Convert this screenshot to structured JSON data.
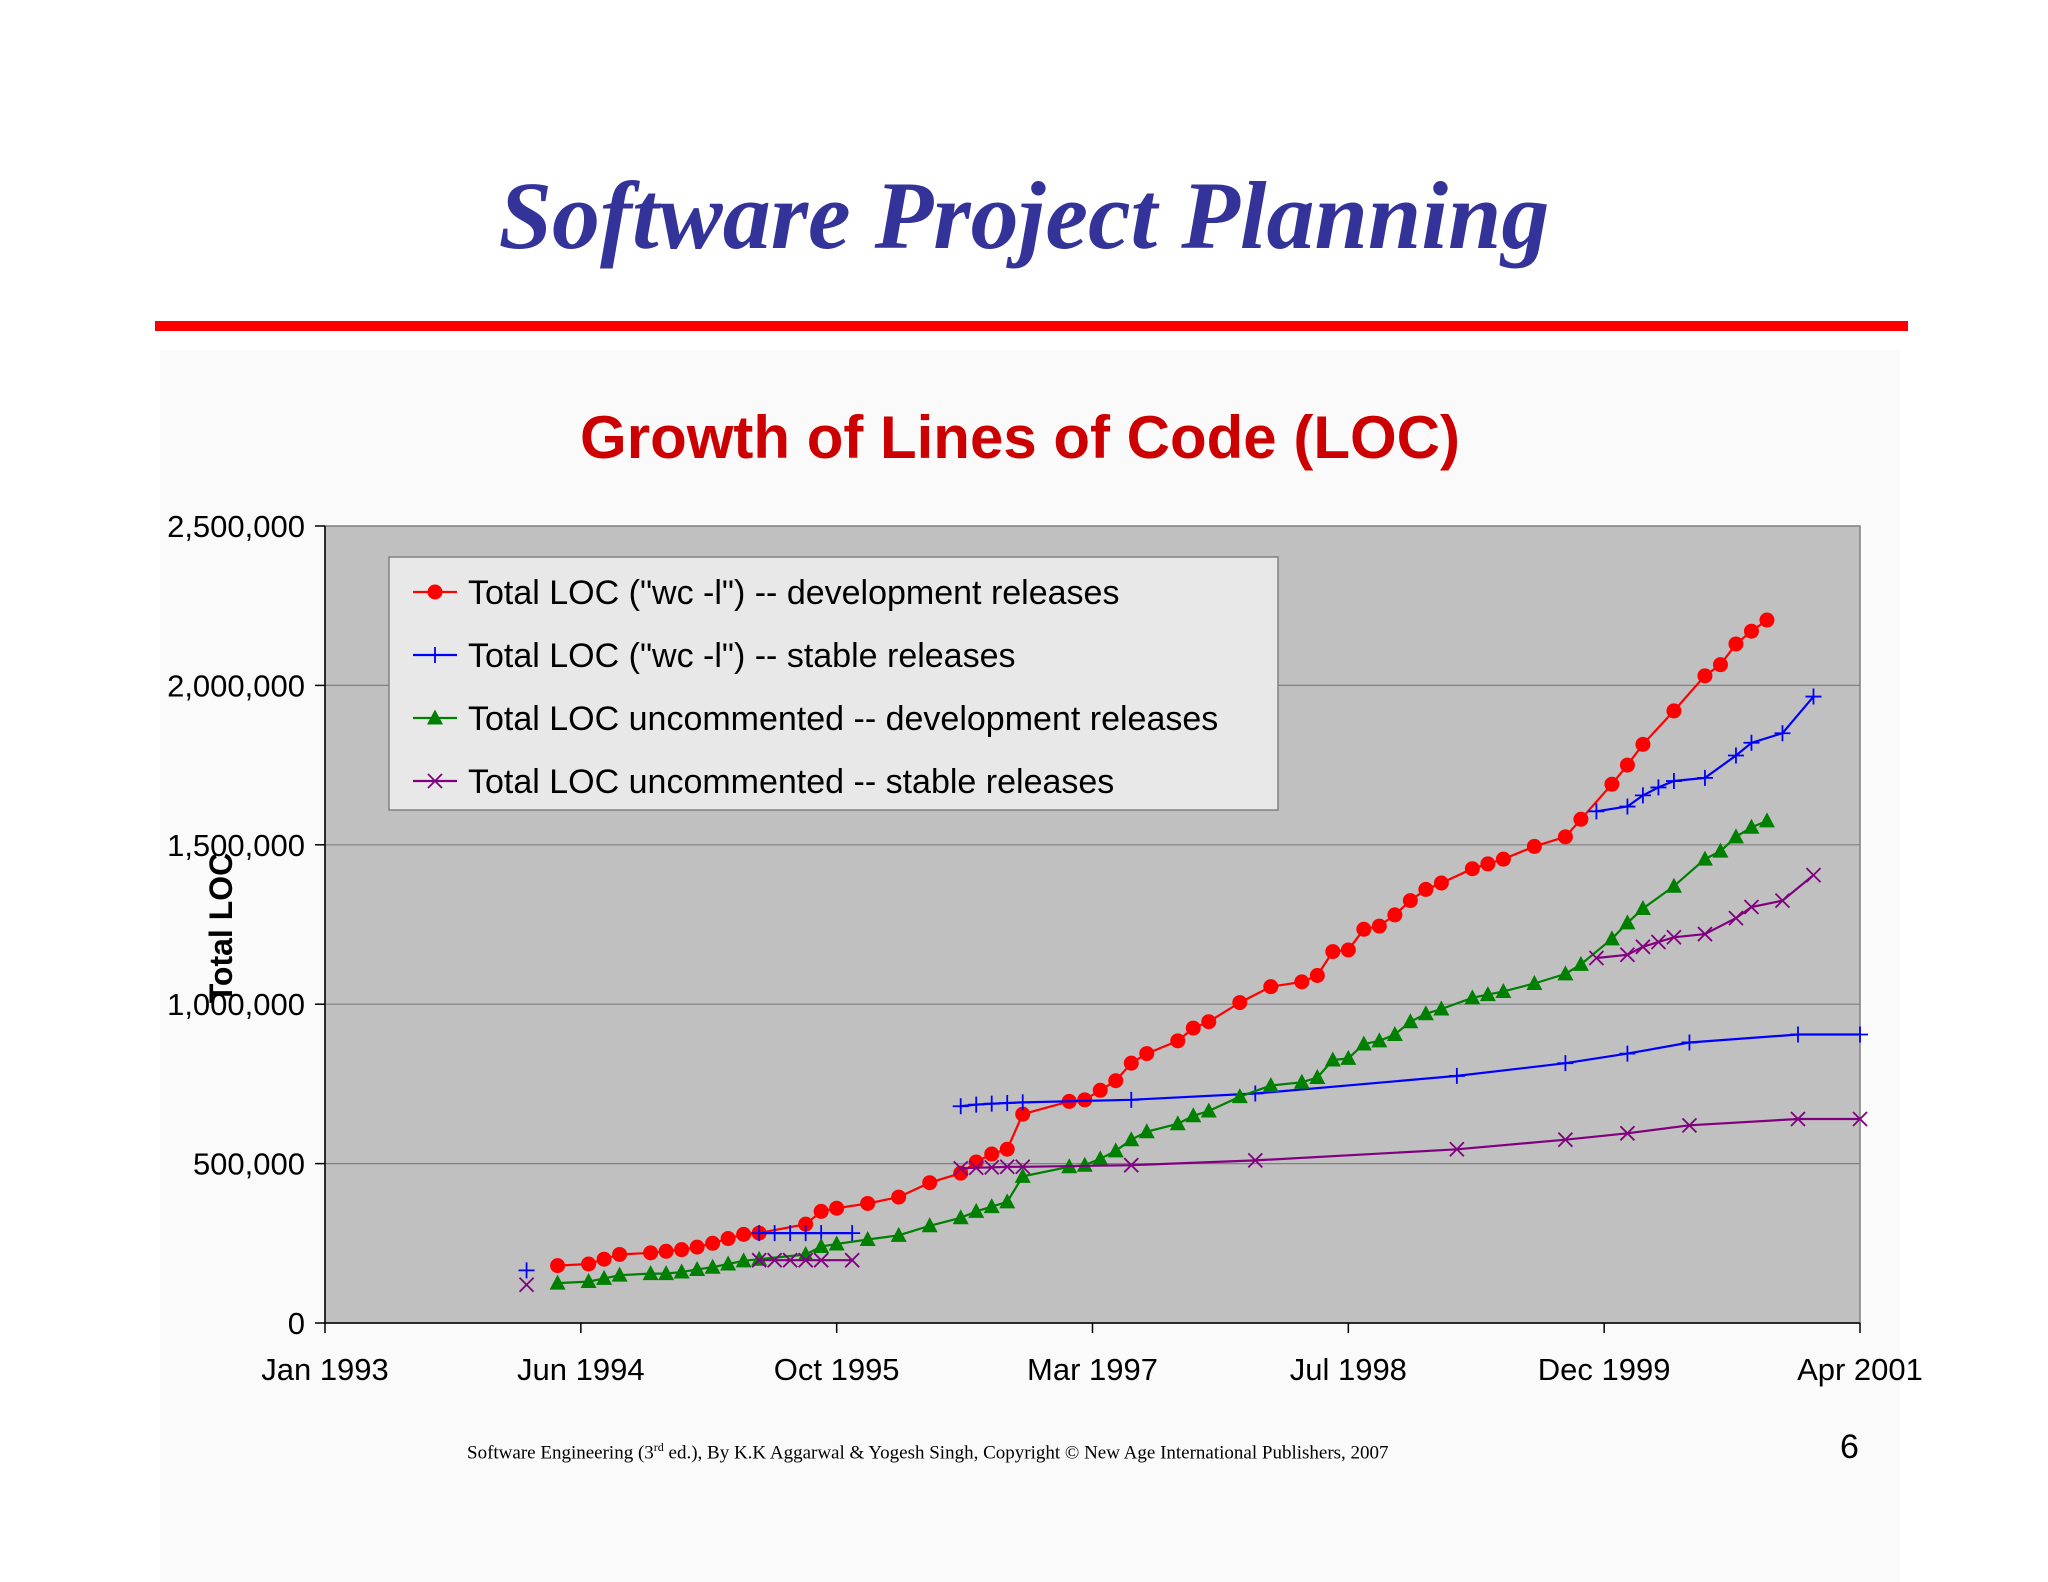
{
  "slide": {
    "title": "Software Project Planning",
    "page_number": "6",
    "footer": {
      "before_sup": "Software Engineering (3",
      "sup": "rd",
      "after_sup": " ed.), By K.K Aggarwal & Yogesh Singh, Copyright © New Age International Publishers, 2007"
    }
  },
  "colors": {
    "title": "#333399",
    "rule": "#ff0000",
    "chart_title": "#cc0000",
    "plot_bg": "#c0c0c0",
    "gridline": "#808080",
    "legend_bg": "#e8e8e8"
  },
  "chart_data": {
    "type": "line",
    "title": "Growth of Lines of Code (LOC)",
    "xlabel": "",
    "ylabel": "Total LOC",
    "x_ticks": [
      "Jan 1993",
      "Jun 1994",
      "Oct 1995",
      "Mar 1997",
      "Jul 1998",
      "Dec 1999",
      "Apr 2001"
    ],
    "y_ticks": [
      "0",
      "500,000",
      "1,000,000",
      "1,500,000",
      "2,000,000",
      "2,500,000"
    ],
    "xlim": [
      "1993-01",
      "2001-04"
    ],
    "ylim": [
      0,
      2500000
    ],
    "grid": "horizontal major",
    "legend_position": "top-left",
    "series": [
      {
        "name": "Total LOC (\"wc -l\") -- development releases",
        "color": "#ff0000",
        "marker": "circle",
        "points": [
          [
            "1994-04",
            180000
          ],
          [
            "1994-06",
            185000
          ],
          [
            "1994-07",
            200000
          ],
          [
            "1994-08",
            215000
          ],
          [
            "1994-10",
            220000
          ],
          [
            "1994-11",
            225000
          ],
          [
            "1994-12",
            230000
          ],
          [
            "1995-01",
            238000
          ],
          [
            "1995-02",
            250000
          ],
          [
            "1995-03",
            265000
          ],
          [
            "1995-04",
            278000
          ],
          [
            "1995-05",
            282000
          ],
          [
            "1995-08",
            310000
          ],
          [
            "1995-09",
            350000
          ],
          [
            "1995-10",
            360000
          ],
          [
            "1995-12",
            375000
          ],
          [
            "1996-02",
            395000
          ],
          [
            "1996-04",
            440000
          ],
          [
            "1996-06",
            470000
          ],
          [
            "1996-07",
            505000
          ],
          [
            "1996-08",
            530000
          ],
          [
            "1996-09",
            545000
          ],
          [
            "1996-10",
            655000
          ],
          [
            "1997-01",
            695000
          ],
          [
            "1997-02",
            700000
          ],
          [
            "1997-03",
            730000
          ],
          [
            "1997-04",
            760000
          ],
          [
            "1997-05",
            815000
          ],
          [
            "1997-06",
            845000
          ],
          [
            "1997-08",
            885000
          ],
          [
            "1997-09",
            925000
          ],
          [
            "1997-10",
            945000
          ],
          [
            "1997-12",
            1005000
          ],
          [
            "1998-02",
            1055000
          ],
          [
            "1998-04",
            1070000
          ],
          [
            "1998-05",
            1090000
          ],
          [
            "1998-06",
            1165000
          ],
          [
            "1998-07",
            1170000
          ],
          [
            "1998-08",
            1235000
          ],
          [
            "1998-09",
            1245000
          ],
          [
            "1998-10",
            1280000
          ],
          [
            "1998-11",
            1325000
          ],
          [
            "1998-12",
            1360000
          ],
          [
            "1999-01",
            1380000
          ],
          [
            "1999-03",
            1425000
          ],
          [
            "1999-04",
            1440000
          ],
          [
            "1999-05",
            1455000
          ],
          [
            "1999-07",
            1495000
          ],
          [
            "1999-09",
            1525000
          ],
          [
            "1999-10",
            1580000
          ],
          [
            "1999-12",
            1690000
          ],
          [
            "2000-01",
            1750000
          ],
          [
            "2000-02",
            1815000
          ],
          [
            "2000-04",
            1920000
          ],
          [
            "2000-06",
            2030000
          ],
          [
            "2000-07",
            2065000
          ],
          [
            "2000-08",
            2130000
          ],
          [
            "2000-09",
            2170000
          ],
          [
            "2000-10",
            2205000
          ]
        ]
      },
      {
        "name": "Total LOC (\"wc -l\") -- stable releases",
        "color": "#0000ff",
        "marker": "plus",
        "segments": [
          [
            [
              "1994-02",
              165000
            ]
          ],
          [
            [
              "1995-05",
              282000
            ],
            [
              "1995-06",
              282000
            ],
            [
              "1995-07",
              282000
            ],
            [
              "1995-08",
              282000
            ],
            [
              "1995-09",
              282000
            ],
            [
              "1995-11",
              282000
            ]
          ],
          [
            [
              "1996-06",
              680000
            ],
            [
              "1996-07",
              685000
            ],
            [
              "1996-08",
              688000
            ],
            [
              "1996-09",
              690000
            ],
            [
              "1996-10",
              692000
            ],
            [
              "1997-05",
              700000
            ],
            [
              "1998-01",
              720000
            ],
            [
              "1999-02",
              775000
            ],
            [
              "1999-09",
              815000
            ],
            [
              "2000-01",
              845000
            ],
            [
              "2000-05",
              880000
            ],
            [
              "2000-12",
              905000
            ],
            [
              "2001-04",
              905000
            ]
          ],
          [
            [
              "1999-11",
              1605000
            ],
            [
              "2000-01",
              1620000
            ],
            [
              "2000-02",
              1655000
            ],
            [
              "2000-03",
              1680000
            ],
            [
              "2000-04",
              1700000
            ],
            [
              "2000-06",
              1710000
            ],
            [
              "2000-08",
              1780000
            ],
            [
              "2000-09",
              1820000
            ],
            [
              "2000-11",
              1850000
            ],
            [
              "2001-01",
              1965000
            ]
          ]
        ]
      },
      {
        "name": "Total LOC uncommented -- development releases",
        "color": "#008000",
        "marker": "triangle",
        "points": [
          [
            "1994-04",
            125000
          ],
          [
            "1994-06",
            130000
          ],
          [
            "1994-07",
            140000
          ],
          [
            "1994-08",
            150000
          ],
          [
            "1994-10",
            155000
          ],
          [
            "1994-11",
            155000
          ],
          [
            "1994-12",
            160000
          ],
          [
            "1995-01",
            168000
          ],
          [
            "1995-02",
            175000
          ],
          [
            "1995-03",
            185000
          ],
          [
            "1995-04",
            195000
          ],
          [
            "1995-05",
            200000
          ],
          [
            "1995-08",
            215000
          ],
          [
            "1995-09",
            240000
          ],
          [
            "1995-10",
            248000
          ],
          [
            "1995-12",
            262000
          ],
          [
            "1996-02",
            275000
          ],
          [
            "1996-04",
            305000
          ],
          [
            "1996-06",
            330000
          ],
          [
            "1996-07",
            350000
          ],
          [
            "1996-08",
            365000
          ],
          [
            "1996-09",
            380000
          ],
          [
            "1996-10",
            460000
          ],
          [
            "1997-01",
            490000
          ],
          [
            "1997-02",
            495000
          ],
          [
            "1997-03",
            515000
          ],
          [
            "1997-04",
            540000
          ],
          [
            "1997-05",
            575000
          ],
          [
            "1997-06",
            600000
          ],
          [
            "1997-08",
            625000
          ],
          [
            "1997-09",
            650000
          ],
          [
            "1997-10",
            665000
          ],
          [
            "1997-12",
            710000
          ],
          [
            "1998-02",
            745000
          ],
          [
            "1998-04",
            755000
          ],
          [
            "1998-05",
            770000
          ],
          [
            "1998-06",
            825000
          ],
          [
            "1998-07",
            830000
          ],
          [
            "1998-08",
            875000
          ],
          [
            "1998-09",
            885000
          ],
          [
            "1998-10",
            905000
          ],
          [
            "1998-11",
            945000
          ],
          [
            "1998-12",
            970000
          ],
          [
            "1999-01",
            985000
          ],
          [
            "1999-03",
            1020000
          ],
          [
            "1999-04",
            1030000
          ],
          [
            "1999-05",
            1040000
          ],
          [
            "1999-07",
            1065000
          ],
          [
            "1999-09",
            1095000
          ],
          [
            "1999-10",
            1125000
          ],
          [
            "1999-12",
            1205000
          ],
          [
            "2000-01",
            1255000
          ],
          [
            "2000-02",
            1300000
          ],
          [
            "2000-04",
            1370000
          ],
          [
            "2000-06",
            1455000
          ],
          [
            "2000-07",
            1480000
          ],
          [
            "2000-08",
            1525000
          ],
          [
            "2000-09",
            1555000
          ],
          [
            "2000-10",
            1575000
          ]
        ]
      },
      {
        "name": "Total LOC uncommented -- stable releases",
        "color": "#800080",
        "marker": "x",
        "segments": [
          [
            [
              "1994-02",
              120000
            ]
          ],
          [
            [
              "1995-05",
              197000
            ],
            [
              "1995-06",
              197000
            ],
            [
              "1995-07",
              197000
            ],
            [
              "1995-08",
              197000
            ],
            [
              "1995-09",
              197000
            ],
            [
              "1995-11",
              197000
            ]
          ],
          [
            [
              "1996-06",
              485000
            ],
            [
              "1996-07",
              487000
            ],
            [
              "1996-08",
              488000
            ],
            [
              "1996-09",
              490000
            ],
            [
              "1996-10",
              490000
            ],
            [
              "1997-05",
              495000
            ],
            [
              "1998-01",
              510000
            ],
            [
              "1999-02",
              545000
            ],
            [
              "1999-09",
              575000
            ],
            [
              "2000-01",
              595000
            ],
            [
              "2000-05",
              620000
            ],
            [
              "2000-12",
              640000
            ],
            [
              "2001-04",
              640000
            ]
          ],
          [
            [
              "1999-11",
              1145000
            ],
            [
              "2000-01",
              1155000
            ],
            [
              "2000-02",
              1180000
            ],
            [
              "2000-03",
              1195000
            ],
            [
              "2000-04",
              1210000
            ],
            [
              "2000-06",
              1220000
            ],
            [
              "2000-08",
              1270000
            ],
            [
              "2000-09",
              1305000
            ],
            [
              "2000-11",
              1325000
            ],
            [
              "2001-01",
              1405000
            ]
          ]
        ]
      }
    ]
  }
}
